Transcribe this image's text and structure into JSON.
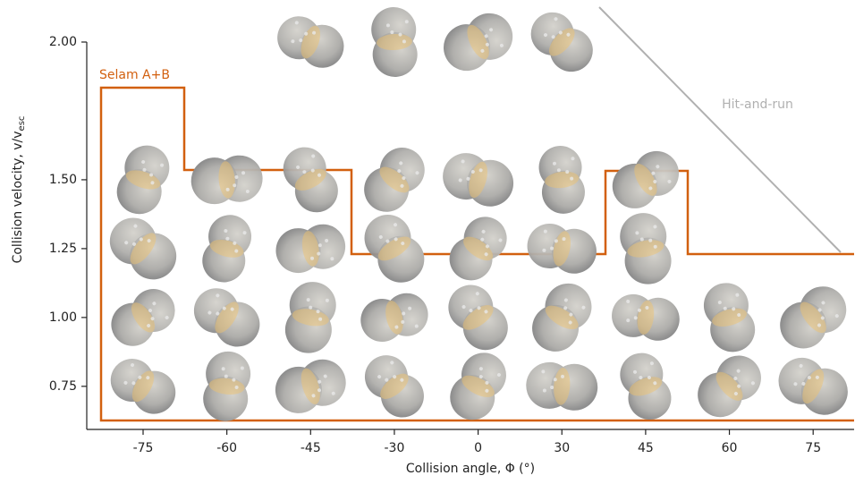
{
  "chart_data": {
    "type": "scatter",
    "xlabel": "Collision angle, Φ (°)",
    "ylabel": {
      "text": "Collision velocity, v/v",
      "subscript": "esc"
    },
    "categories": [
      "-75",
      "-60",
      "-45",
      "-30",
      "0",
      "30",
      "45",
      "60",
      "75"
    ],
    "ylim": [
      0.6,
      2.0
    ],
    "yticks": [
      {
        "value": 0.75,
        "label": "0.75"
      },
      {
        "value": 1,
        "label": "1.00"
      },
      1.25,
      {
        "value": 1.5,
        "label": "1.50"
      },
      {
        "value": 2,
        "label": "2.00"
      }
    ],
    "series": [
      {
        "color": "#a9a9a9",
        "x": [
          "-45",
          "-30",
          "0",
          "30",
          "-75",
          "-60",
          "-45",
          "-30",
          "0",
          "30",
          "45",
          "-75",
          "-60",
          "-45",
          "-30",
          "0",
          "30",
          "45",
          "-75",
          "-60",
          "-45",
          "-30",
          "0",
          "30",
          "45",
          "60",
          "75",
          "-75",
          "-60",
          "-45",
          "-30",
          "0",
          "30",
          "45",
          "60",
          "75"
        ],
        "y": [
          2,
          2,
          2,
          2,
          1.5,
          1.5,
          1.5,
          1.5,
          1.5,
          1.5,
          1.5,
          1.25,
          1.25,
          1.25,
          1.25,
          1.25,
          1.25,
          1.25,
          1,
          1,
          1,
          1,
          1,
          1,
          1,
          1,
          1,
          0.75,
          0.75,
          0.75,
          0.75,
          0.75,
          0.75,
          0.75,
          0.75,
          0.75
        ]
      }
    ],
    "annotations": [
      {
        "text": "Selam A+B",
        "color": "#d2600f"
      },
      {
        "text": "Hit-and-run",
        "color": "#b0b0b0"
      }
    ]
  }
}
